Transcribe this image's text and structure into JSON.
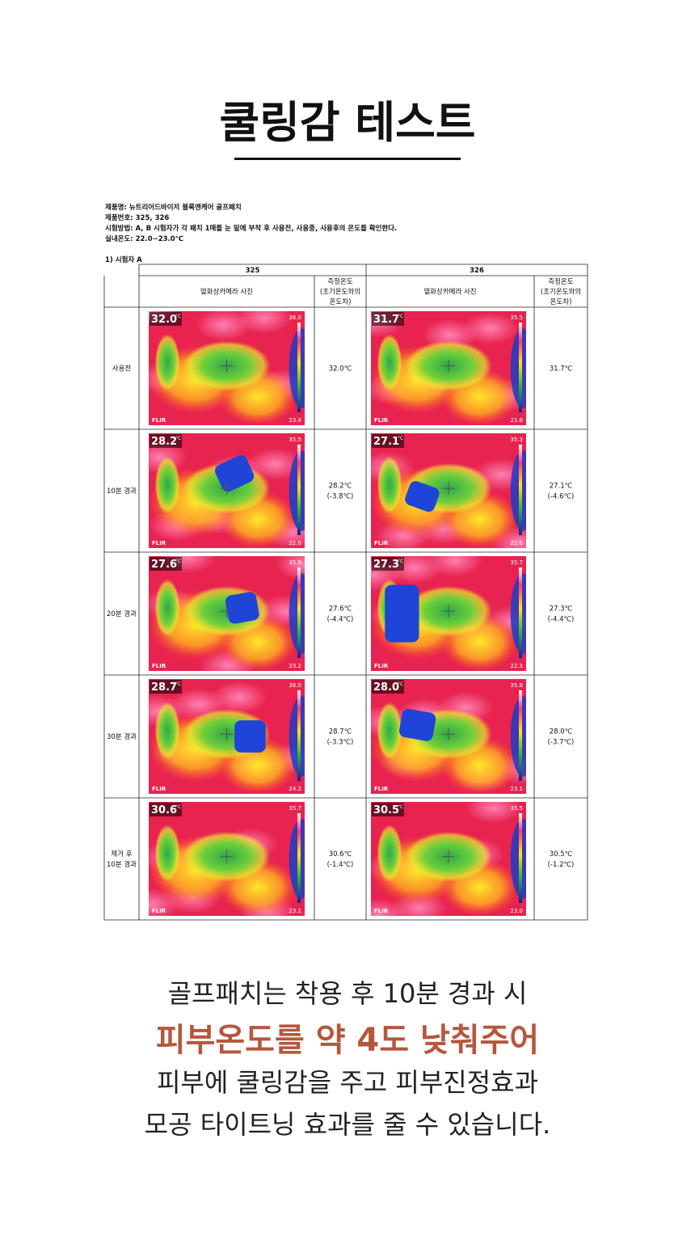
{
  "title": "쿨링감 테스트",
  "info": [
    "제품명: 뉴트리어드바이저 블록앤케어 골프패치",
    "제품번호: 325, 326",
    "시험방법: A, B 시험자가 각 패치 1매를 눈 밑에 부착 후 사용전, 사용중, 사용후의 온도를 확인한다.",
    "실내온도: 22.0~23.0℃"
  ],
  "subject": "1) 시험자 A",
  "table": {
    "products": [
      "325",
      "326"
    ],
    "columns": {
      "image": "열화상카메라 사진",
      "temp": [
        "측정온도",
        "(초기온도와의",
        "온도차)"
      ]
    },
    "rows": [
      {
        "label": [
          "사용전"
        ],
        "cells": [
          {
            "image": {
              "reading": "32.0",
              "unit": "°C",
              "max": "36.0",
              "min": "23.4",
              "brand": "FLIR"
            },
            "temp": [
              "32.0℃"
            ]
          },
          {
            "image": {
              "reading": "31.7",
              "unit": "°C",
              "max": "35.5",
              "min": "21.6",
              "brand": "FLIR"
            },
            "temp": [
              "31.7℃"
            ]
          }
        ]
      },
      {
        "label": [
          "10분 경과"
        ],
        "cells": [
          {
            "image": {
              "reading": "28.2",
              "unit": "°C",
              "max": "35.5",
              "min": "22.0",
              "brand": "FLIR"
            },
            "temp": [
              "28.2℃",
              "(-3.8℃)"
            ]
          },
          {
            "image": {
              "reading": "27.1",
              "unit": "°C",
              "max": "35.3",
              "min": "22.6",
              "brand": "FLIR"
            },
            "temp": [
              "27.1℃",
              "(-4.6℃)"
            ]
          }
        ]
      },
      {
        "label": [
          "20분 경과"
        ],
        "cells": [
          {
            "image": {
              "reading": "27.6",
              "unit": "°C",
              "max": "35.9",
              "min": "23.2",
              "brand": "FLIR"
            },
            "temp": [
              "27.6℃",
              "(-4.4℃)"
            ]
          },
          {
            "image": {
              "reading": "27.3",
              "unit": "°C",
              "max": "35.7",
              "min": "22.3",
              "brand": "FLIR"
            },
            "temp": [
              "27.3℃",
              "(-4.4℃)"
            ]
          }
        ]
      },
      {
        "label": [
          "30분 경과"
        ],
        "cells": [
          {
            "image": {
              "reading": "28.7",
              "unit": "°C",
              "max": "36.0",
              "min": "24.2",
              "brand": "FLIR"
            },
            "temp": [
              "28.7℃",
              "(-3.3℃)"
            ]
          },
          {
            "image": {
              "reading": "28.0",
              "unit": "°C",
              "max": "35.8",
              "min": "23.1",
              "brand": "FLIR"
            },
            "temp": [
              "28.0℃",
              "(-3.7℃)"
            ]
          }
        ]
      },
      {
        "label": [
          "제거 후",
          "10분 경과"
        ],
        "cells": [
          {
            "image": {
              "reading": "30.6",
              "unit": "°C",
              "max": "35.7",
              "min": "23.2",
              "brand": "FLIR"
            },
            "temp": [
              "30.6℃",
              "(-1.4℃)"
            ]
          },
          {
            "image": {
              "reading": "30.5",
              "unit": "°C",
              "max": "35.5",
              "min": "23.0",
              "brand": "FLIR"
            },
            "temp": [
              "30.5℃",
              "(-1.2℃)"
            ]
          }
        ]
      }
    ]
  },
  "closing": {
    "line1": "골프패치는 착용 후 10분 경과 시",
    "highlight": "피부온도를 약 4도 낮춰주어",
    "line3": "피부에 쿨링감을 주고 피부진정효과",
    "line4": "모공 타이트닝 효과를 줄 수 있습니다."
  }
}
